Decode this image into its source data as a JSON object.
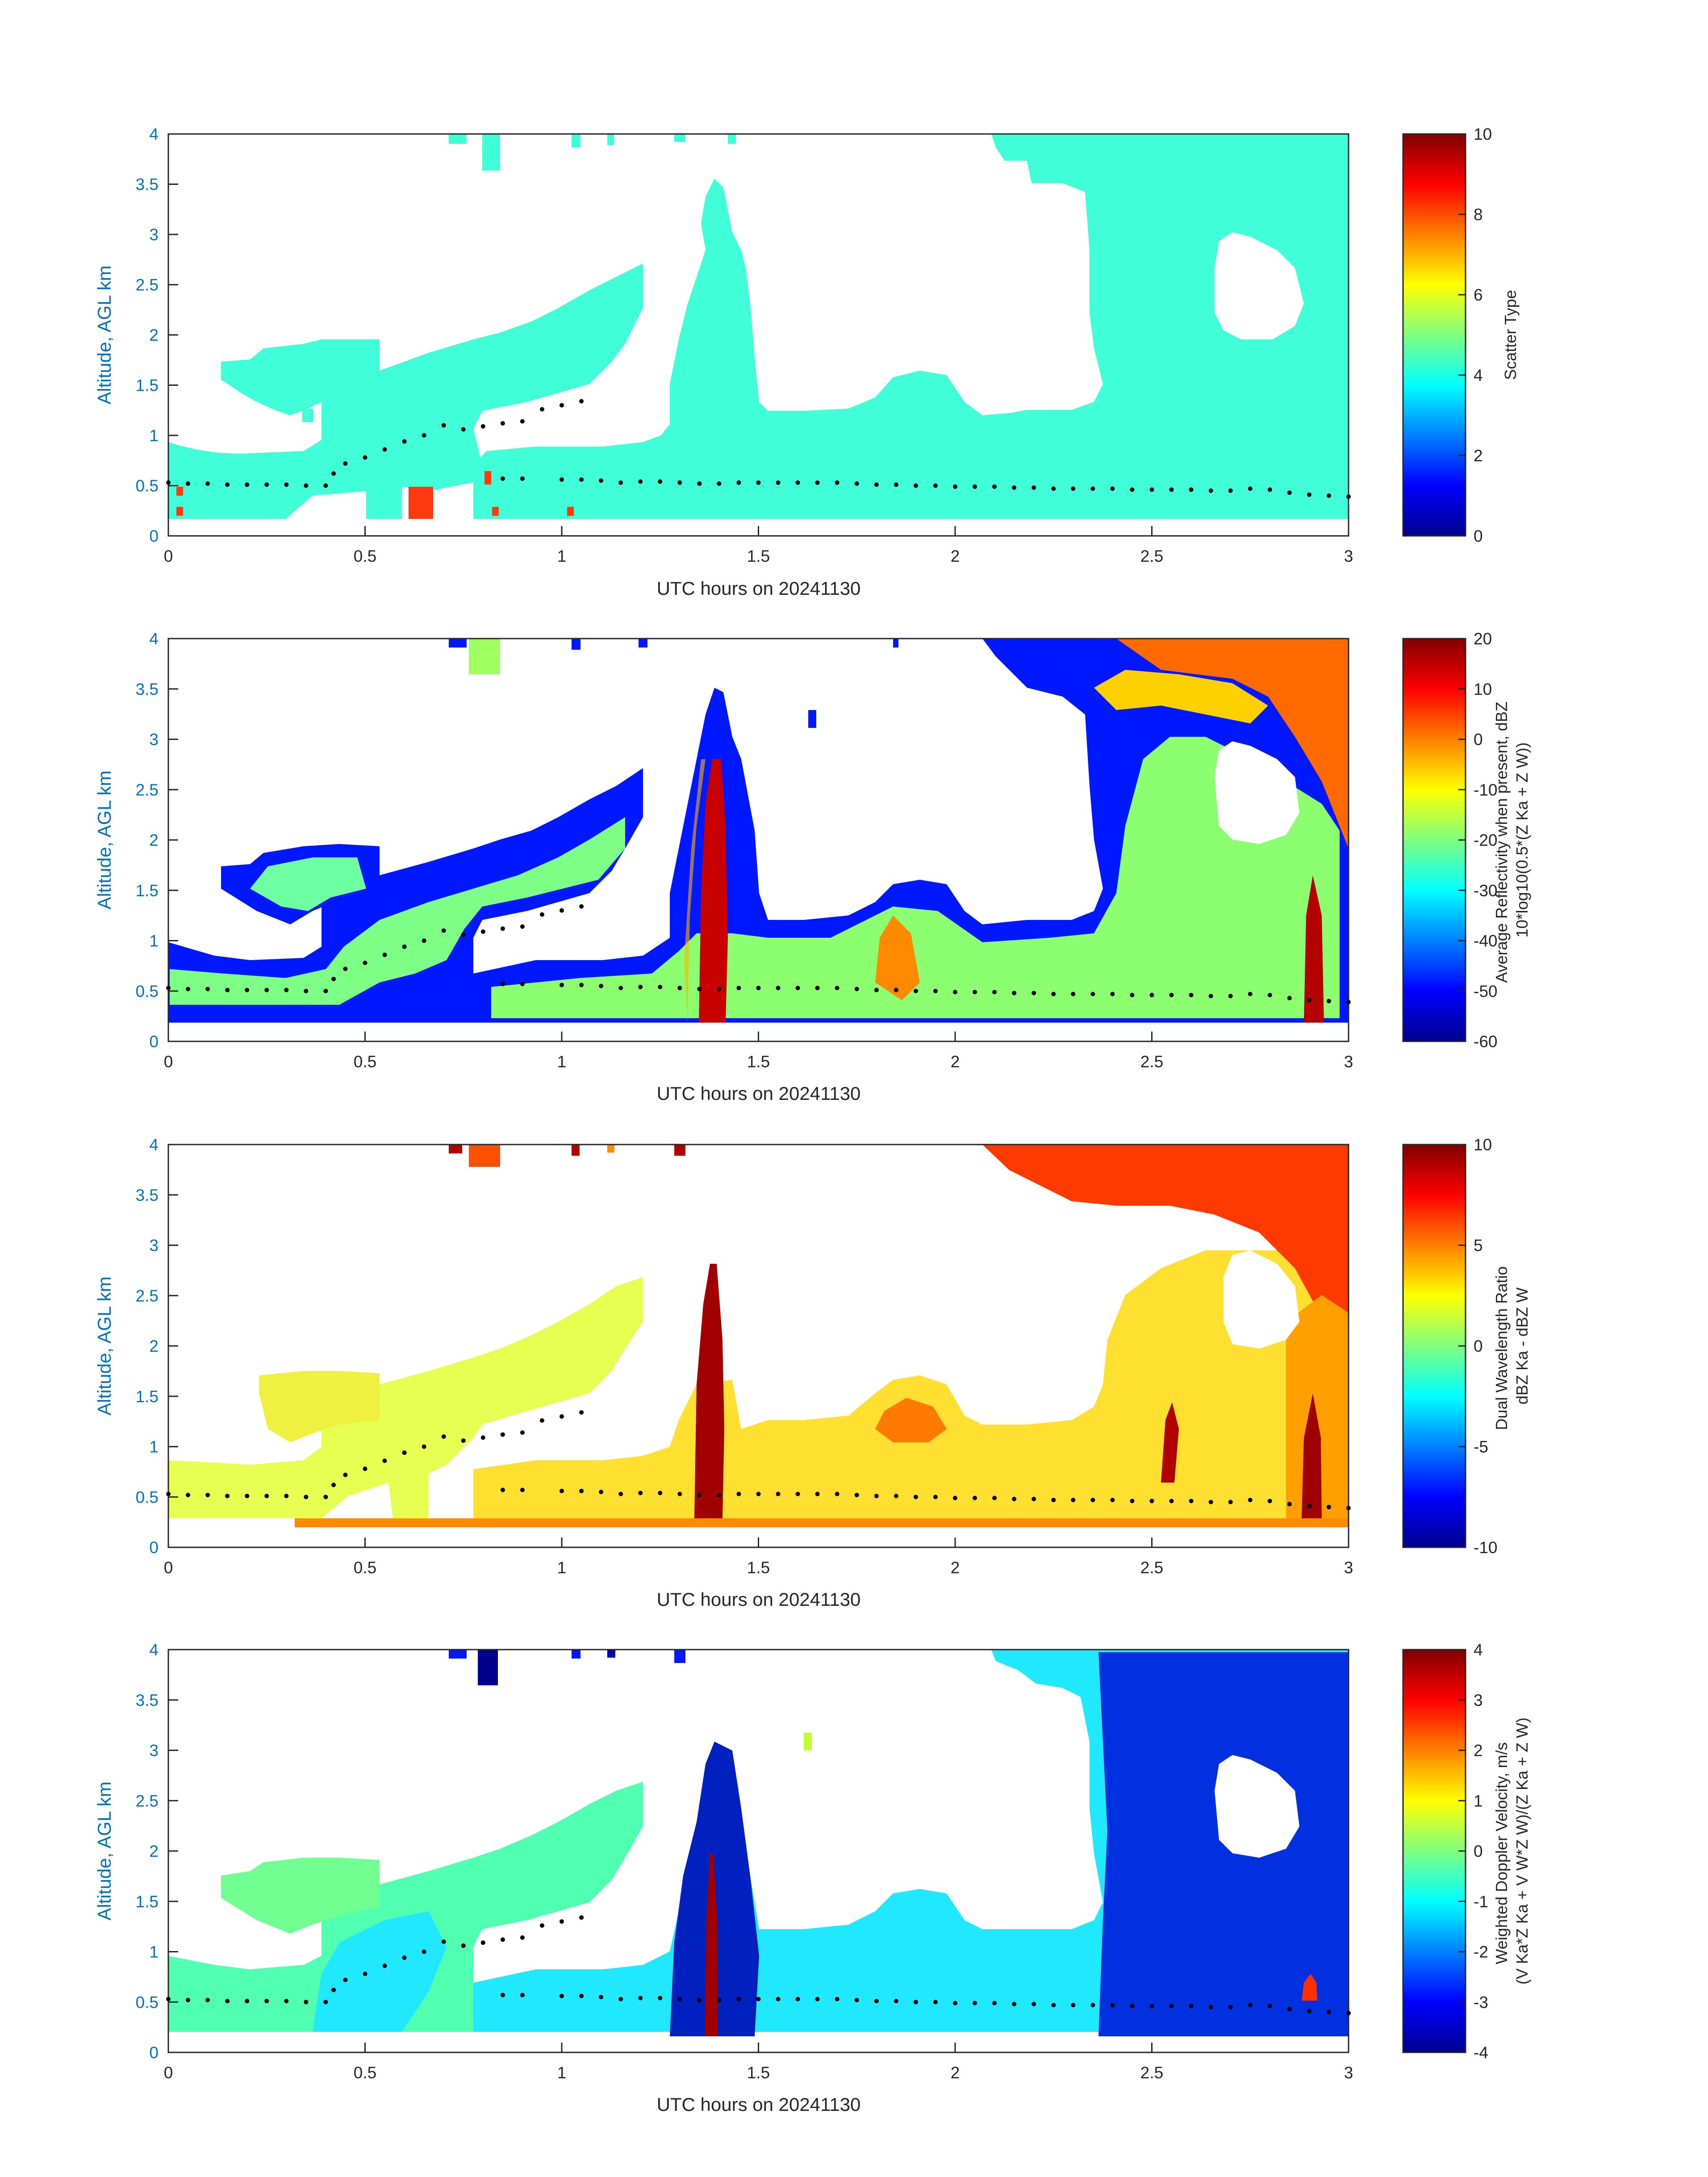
{
  "chart_data": [
    {
      "type": "heatmap",
      "panel": "scatter-type",
      "xlabel": "UTC hours on 20241130",
      "ylabel": "Altitude, AGL km",
      "xlim": [
        0,
        3
      ],
      "ylim": [
        0,
        4
      ],
      "xticks": [
        "0",
        "0.5",
        "1",
        "1.5",
        "2",
        "2.5",
        "3"
      ],
      "yticks": [
        "0",
        "0.5",
        "1",
        "1.5",
        "2",
        "2.5",
        "3",
        "3.5",
        "4"
      ],
      "colorbar": {
        "label_lines": [
          "Scatter Type"
        ],
        "range": [
          0,
          10
        ],
        "ticks": [
          "0",
          "2",
          "4",
          "6",
          "8",
          "10"
        ]
      },
      "colormap": "jet",
      "field_description": "Mostly uniform value ~4 (cyan) over all echo regions; a few cells ~8 (orange-red) near 0.6-0.7 h below 0.6 km."
    },
    {
      "type": "heatmap",
      "panel": "reflectivity",
      "xlabel": "UTC hours on 20241130",
      "ylabel": "Altitude, AGL km",
      "xlim": [
        0,
        3
      ],
      "ylim": [
        0,
        4
      ],
      "xticks": [
        "0",
        "0.5",
        "1",
        "1.5",
        "2",
        "2.5",
        "3"
      ],
      "yticks": [
        "0",
        "0.5",
        "1",
        "1.5",
        "2",
        "2.5",
        "3",
        "3.5",
        "4"
      ],
      "colorbar": {
        "label_lines": [
          "Average Reflectivity when present, dBZ",
          "10*log10(0.5*(Z Ka + Z W))"
        ],
        "range": [
          -60,
          20
        ],
        "ticks": [
          "-60",
          "-50",
          "-40",
          "-30",
          "-20",
          "-10",
          "0",
          "10",
          "20"
        ]
      },
      "colormap": "jet",
      "field_description": "Blue edges (-50 dBZ) grading to green/yellow interior (-20 to -10 dBZ); strong core near 1.35-1.4 h (~10 dBZ); upper right 2.7-3 h red/orange (0-10 dBZ)."
    },
    {
      "type": "heatmap",
      "panel": "dual-wavelength-ratio",
      "xlabel": "UTC hours on 20241130",
      "ylabel": "Altitude, AGL km",
      "xlim": [
        0,
        3
      ],
      "ylim": [
        0,
        4
      ],
      "xticks": [
        "0",
        "0.5",
        "1",
        "1.5",
        "2",
        "2.5",
        "3"
      ],
      "yticks": [
        "0",
        "0.5",
        "1",
        "1.5",
        "2",
        "2.5",
        "3",
        "3.5",
        "4"
      ],
      "colorbar": {
        "label_lines": [
          "Dual Wavelength Ratio",
          "dBZ Ka - dBZ W"
        ],
        "range": [
          -10,
          10
        ],
        "ticks": [
          "-10",
          "-5",
          "0",
          "5",
          "10"
        ]
      },
      "colormap": "jet",
      "field_description": "Mostly yellow (~2-4 dB); dark red column at 1.35-1.4 h and 2.85 h (~10 dB); upper right red (~7-9 dB)."
    },
    {
      "type": "heatmap",
      "panel": "doppler-velocity",
      "xlabel": "UTC hours on 20241130",
      "ylabel": "Altitude, AGL km",
      "xlim": [
        0,
        3
      ],
      "ylim": [
        0,
        4
      ],
      "xticks": [
        "0",
        "0.5",
        "1",
        "1.5",
        "2",
        "2.5",
        "3"
      ],
      "yticks": [
        "0",
        "0.5",
        "1",
        "1.5",
        "2",
        "2.5",
        "3",
        "3.5",
        "4"
      ],
      "colorbar": {
        "label_lines": [
          "Weighted Doppler Velocity, m/s",
          "(V Ka*Z Ka + V W*Z W)/(Z Ka + Z W)"
        ],
        "range": [
          -4,
          4
        ],
        "ticks": [
          "-4",
          "-3",
          "-2",
          "-1",
          "0",
          "1",
          "2",
          "3",
          "4"
        ]
      },
      "colormap": "jet",
      "field_description": "Cyan/green (-1 to 0 m/s) in low cloud; dark blue (-3 to -4 m/s) in 1.3-1.45 h column and 2.4-3 h region; dark red column (~3 m/s) at 1.35 h."
    }
  ],
  "cloud_base_dots": {
    "description": "Black dots marking cloud-base height (km) vs UTC hours, repeated on every panel",
    "x": [
      0.0,
      0.05,
      0.1,
      0.15,
      0.2,
      0.25,
      0.3,
      0.35,
      0.4,
      0.42,
      0.45,
      0.5,
      0.55,
      0.6,
      0.65,
      0.7,
      0.75,
      0.8,
      0.85,
      0.9,
      0.95,
      1.0,
      1.05,
      0.85,
      0.9,
      1.0,
      1.05,
      1.1,
      1.15,
      1.2,
      1.25,
      1.3,
      1.35,
      1.4,
      1.45,
      1.5,
      1.55,
      1.6,
      1.65,
      1.7,
      1.75,
      1.8,
      1.85,
      1.9,
      1.95,
      2.0,
      2.05,
      2.1,
      2.15,
      2.2,
      2.25,
      2.3,
      2.35,
      2.4,
      2.45,
      2.5,
      2.55,
      2.6,
      2.65,
      2.7,
      2.75,
      2.8,
      2.85,
      2.9,
      2.95,
      3.0
    ],
    "y": [
      0.53,
      0.52,
      0.52,
      0.51,
      0.51,
      0.51,
      0.51,
      0.5,
      0.5,
      0.62,
      0.72,
      0.78,
      0.86,
      0.94,
      1.0,
      1.1,
      1.06,
      1.09,
      1.12,
      1.14,
      1.26,
      1.3,
      1.34,
      0.57,
      0.57,
      0.56,
      0.56,
      0.55,
      0.53,
      0.54,
      0.54,
      0.53,
      0.52,
      0.52,
      0.53,
      0.53,
      0.53,
      0.53,
      0.53,
      0.53,
      0.52,
      0.51,
      0.51,
      0.5,
      0.5,
      0.49,
      0.49,
      0.49,
      0.48,
      0.48,
      0.47,
      0.47,
      0.47,
      0.47,
      0.46,
      0.46,
      0.46,
      0.46,
      0.45,
      0.45,
      0.47,
      0.46,
      0.43,
      0.41,
      0.4,
      0.39
    ]
  }
}
